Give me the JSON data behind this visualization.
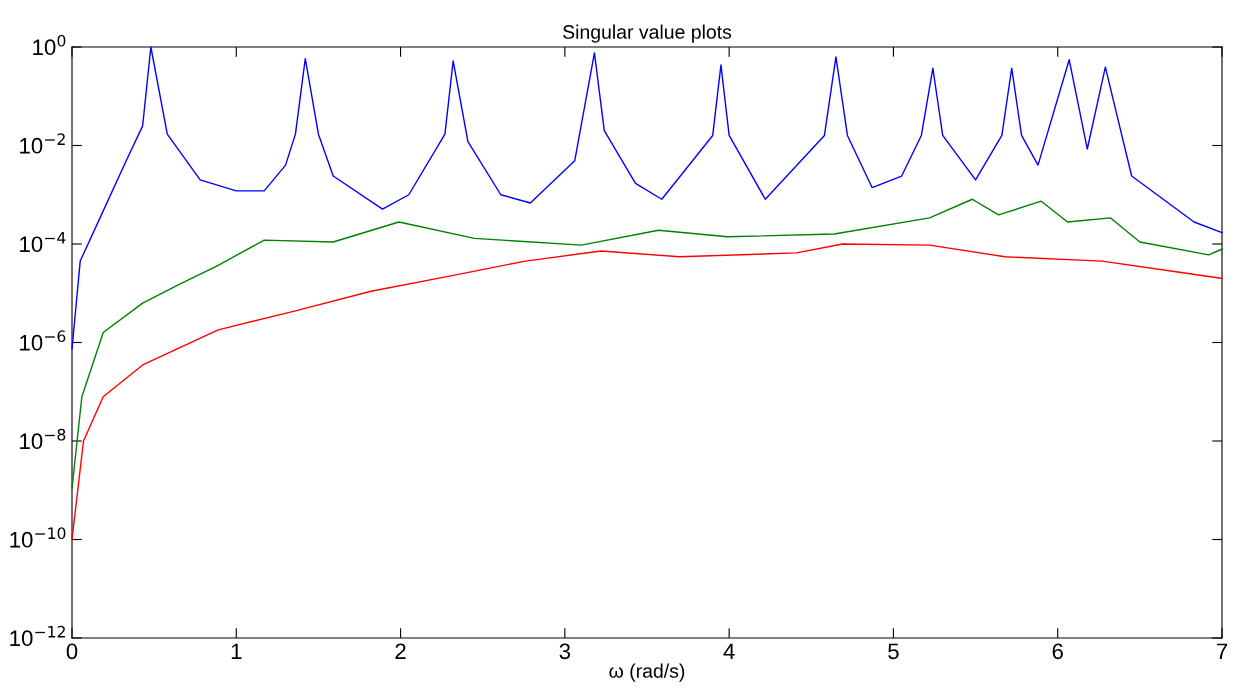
{
  "chart_data": {
    "type": "line",
    "title": "Singular value plots",
    "xlabel": "ω (rad/s)",
    "log": "y",
    "marker": "none",
    "line_style": "solid",
    "xlim": [
      0,
      7
    ],
    "xticks": [
      0,
      1,
      2,
      3,
      4,
      5,
      6,
      7
    ],
    "ylim": [
      1e-12,
      1
    ],
    "yticks": [
      {
        "value": 1,
        "label": "10$^{0}$"
      },
      {
        "value": 0.01,
        "label": "10$^{−2}$"
      },
      {
        "value": 0.0001,
        "label": "10$^{−4}$"
      },
      {
        "value": 1e-06,
        "label": "10$^{−6}$"
      },
      {
        "value": 1e-08,
        "label": "10$^{−8}$"
      },
      {
        "value": 1e-10,
        "label": "10$^{−10}$"
      },
      {
        "value": 1e-12,
        "label": "10$^{−12}$"
      }
    ],
    "series": [
      {
        "color": "#0000ff",
        "x": [
          0,
          0.05,
          0.19,
          0.33,
          0.43,
          0.48,
          0.58,
          0.78,
          1.0,
          1.17,
          1.3,
          1.36,
          1.42,
          1.5,
          1.59,
          1.89,
          2.05,
          2.27,
          2.32,
          2.41,
          2.61,
          2.79,
          3.06,
          3.18,
          3.24,
          3.43,
          3.59,
          3.9,
          3.95,
          4.0,
          4.22,
          4.58,
          4.65,
          4.72,
          4.87,
          5.05,
          5.17,
          5.24,
          5.3,
          5.5,
          5.66,
          5.72,
          5.78,
          5.88,
          6.07,
          6.18,
          6.29,
          6.45,
          6.83,
          7.0
        ],
        "values": [
          7.4e-07,
          4.5e-05,
          0.00047,
          0.0049,
          0.025,
          1,
          0.017,
          0.002,
          0.0012,
          0.0012,
          0.004,
          0.017,
          0.58,
          0.017,
          0.0024,
          0.00051,
          0.001,
          0.017,
          0.52,
          0.012,
          0.001,
          0.00068,
          0.0049,
          0.76,
          0.02,
          0.0017,
          0.00081,
          0.016,
          0.43,
          0.016,
          0.00081,
          0.016,
          0.63,
          0.016,
          0.0014,
          0.0024,
          0.016,
          0.37,
          0.016,
          0.002,
          0.016,
          0.37,
          0.016,
          0.004,
          0.55,
          0.0085,
          0.39,
          0.0024,
          0.00028,
          0.00017
        ]
      },
      {
        "color": "#008000",
        "x": [
          0,
          0.06,
          0.19,
          0.43,
          0.65,
          0.89,
          1.17,
          1.59,
          1.99,
          2.45,
          3.1,
          3.57,
          3.99,
          4.64,
          5.22,
          5.48,
          5.64,
          5.9,
          6.06,
          6.32,
          6.5,
          6.92,
          7.0
        ],
        "values": [
          1.1e-09,
          7.9e-08,
          1.6e-06,
          6.3e-06,
          1.5e-05,
          3.7e-05,
          0.00012,
          0.00011,
          0.00028,
          0.00013,
          9.5e-05,
          0.00019,
          0.00014,
          0.00016,
          0.00034,
          0.00081,
          0.00039,
          0.00074,
          0.00028,
          0.00034,
          0.00011,
          6e-05,
          7.9e-05
        ]
      },
      {
        "color": "#ff0000",
        "x": [
          0,
          0.07,
          0.19,
          0.43,
          0.89,
          1.36,
          1.82,
          2.29,
          2.76,
          3.22,
          3.7,
          4.41,
          4.69,
          5.22,
          5.68,
          6.27,
          6.73,
          7.0
        ],
        "values": [
          1e-10,
          1e-08,
          7.9e-08,
          3.5e-07,
          1.8e-06,
          4.4e-06,
          1.1e-05,
          2.2e-05,
          4.5e-05,
          7.2e-05,
          5.5e-05,
          6.6e-05,
          0.0001,
          9.5e-05,
          5.5e-05,
          4.5e-05,
          2.7e-05,
          2e-05
        ]
      }
    ]
  }
}
